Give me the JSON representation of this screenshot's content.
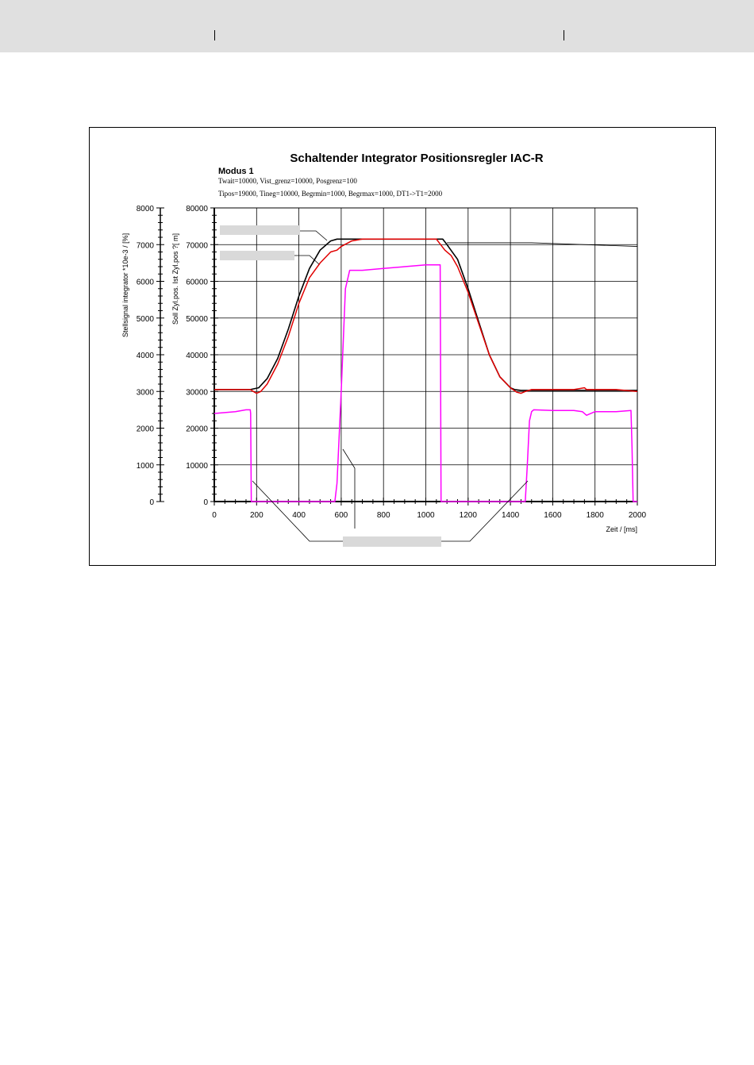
{
  "colors": {
    "header_band": "#e0e0e0",
    "soll": "#000000",
    "ist": "#e00000",
    "stellsignal": "#ff00ff",
    "redaction": "#d9d9d9"
  },
  "chart_data": {
    "type": "line",
    "title": "Schaltender Integrator Positionsregler IAC-R",
    "mode_label": "Modus 1",
    "params": [
      "Twait=10000, Vist_grenz=10000, Posgrenz=100",
      "Tipos=19000, Tineg=10000, Begrmin=1000, Begrmax=1000, DT1->T1=2000"
    ],
    "xlabel": "Zeit / [ms]",
    "ylabel_left": "Stellsignal integrator *10e-3 / [%]",
    "ylabel_right": "Soll Zyl.pos. Ist Zyl.pos ?[ m]",
    "xlim": [
      0,
      2000
    ],
    "ylim_left": [
      0,
      8000
    ],
    "ylim_right": [
      0,
      80000
    ],
    "x_ticks": [
      "0",
      "200",
      "400",
      "600",
      "800",
      "1000",
      "1200",
      "1400",
      "1600",
      "1800",
      "2000"
    ],
    "y_ticks_left": [
      "0",
      "1000",
      "2000",
      "3000",
      "4000",
      "5000",
      "6000",
      "7000",
      "8000"
    ],
    "y_ticks_right": [
      "0",
      "10000",
      "20000",
      "30000",
      "40000",
      "50000",
      "60000",
      "70000",
      "80000"
    ],
    "grid": true,
    "legend": "none",
    "series": [
      {
        "key": "soll",
        "axis": "right",
        "x": [
          0,
          170,
          210,
          250,
          300,
          350,
          400,
          450,
          500,
          550,
          580,
          600,
          700,
          800,
          900,
          1000,
          1050,
          1080,
          1100,
          1150,
          1200,
          1250,
          1300,
          1350,
          1400,
          1420,
          1450,
          1500,
          1600,
          1700,
          1800,
          1900,
          2000
        ],
        "y": [
          30500,
          30500,
          31000,
          33500,
          39000,
          47000,
          56000,
          63500,
          68500,
          71000,
          71500,
          71500,
          71500,
          71500,
          71500,
          71500,
          71500,
          71500,
          70000,
          66000,
          58000,
          49000,
          40000,
          34000,
          31000,
          30500,
          30300,
          30300,
          30300,
          30300,
          30300,
          30300,
          30300
        ]
      },
      {
        "key": "ist",
        "axis": "right",
        "x": [
          0,
          150,
          170,
          185,
          200,
          220,
          250,
          300,
          350,
          400,
          450,
          500,
          550,
          580,
          600,
          650,
          700,
          800,
          900,
          1000,
          1050,
          1070,
          1090,
          1120,
          1150,
          1200,
          1250,
          1300,
          1350,
          1400,
          1430,
          1450,
          1470,
          1500,
          1600,
          1700,
          1750,
          1760,
          1800,
          1900,
          2000
        ],
        "y": [
          30500,
          30500,
          30500,
          30000,
          29500,
          30000,
          32000,
          37500,
          45000,
          54000,
          61000,
          65000,
          68000,
          68500,
          69500,
          71000,
          71500,
          71500,
          71500,
          71500,
          71500,
          70000,
          68500,
          67000,
          64000,
          57000,
          48500,
          40000,
          34000,
          31000,
          29800,
          29500,
          30000,
          30500,
          30500,
          30500,
          31000,
          30500,
          30500,
          30500,
          30000
        ]
      },
      {
        "key": "stellsignal",
        "axis": "left",
        "x": [
          0,
          100,
          150,
          170,
          172,
          175,
          570,
          580,
          600,
          620,
          640,
          700,
          800,
          900,
          1000,
          1050,
          1068,
          1070,
          1072,
          1470,
          1480,
          1490,
          1500,
          1510,
          1600,
          1700,
          1740,
          1760,
          1800,
          1900,
          1970,
          1975,
          1980,
          2000
        ],
        "y": [
          2400,
          2450,
          2500,
          2500,
          2400,
          0,
          0,
          500,
          3000,
          5800,
          6300,
          6300,
          6350,
          6400,
          6450,
          6450,
          6450,
          3000,
          0,
          0,
          1000,
          2200,
          2450,
          2500,
          2480,
          2480,
          2450,
          2350,
          2450,
          2450,
          2480,
          1500,
          0,
          0
        ]
      }
    ]
  }
}
